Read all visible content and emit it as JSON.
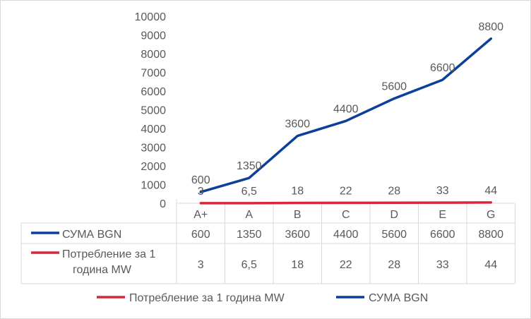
{
  "chart_data": {
    "type": "line",
    "categories": [
      "A+",
      "A",
      "B",
      "C",
      "D",
      "E",
      "G"
    ],
    "series": [
      {
        "name": "СУМА BGN",
        "values": [
          600,
          1350,
          3600,
          4400,
          5600,
          6600,
          8800
        ],
        "color": "#0B3F9A",
        "labels": [
          "600",
          "1350",
          "3600",
          "4400",
          "5600",
          "6600",
          "8800"
        ]
      },
      {
        "name": "Потребление за 1 година MW",
        "values": [
          3,
          6.5,
          18,
          22,
          28,
          33,
          44
        ],
        "color": "#D62839",
        "labels": [
          "3",
          "6,5",
          "18",
          "22",
          "28",
          "33",
          "44"
        ]
      }
    ],
    "ylim": [
      0,
      10000
    ],
    "yticks": [
      "0",
      "1000",
      "2000",
      "3000",
      "4000",
      "5000",
      "6000",
      "7000",
      "8000",
      "9000",
      "10000"
    ],
    "data_table": true,
    "table_series_labels": [
      "СУМА BGN",
      [
        "Потребление за 1",
        "година MW"
      ]
    ],
    "legend": {
      "position": "bottom",
      "entries": [
        "Потребление за 1 година MW",
        "СУМА BGN"
      ]
    },
    "grid": false
  }
}
